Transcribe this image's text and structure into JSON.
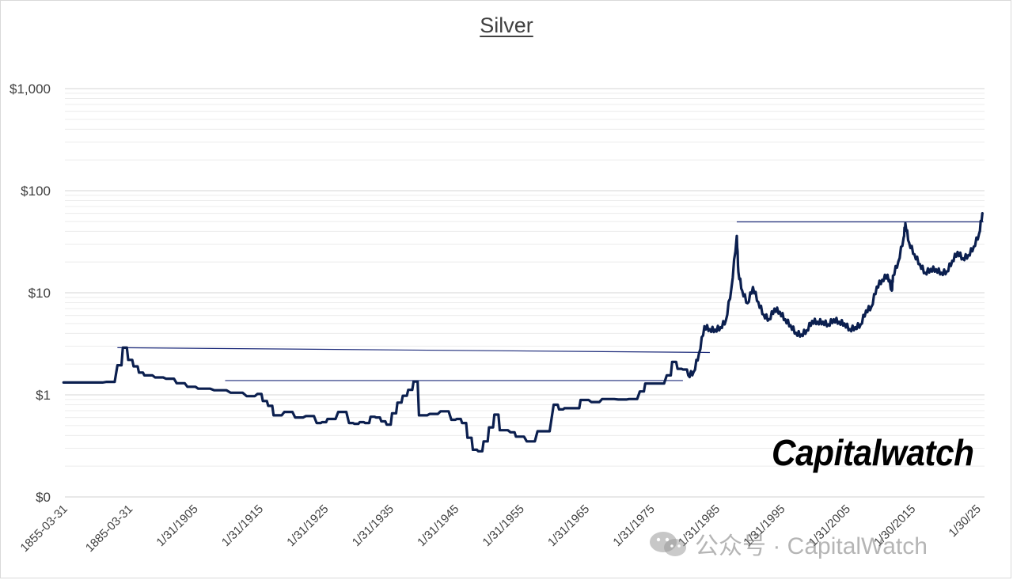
{
  "chart_data": {
    "type": "line",
    "title": "Silver",
    "xlabel": "",
    "ylabel": "",
    "y_scale": "log",
    "y_ticks": [
      "$1,000",
      "$100",
      "$10",
      "$1",
      "$0"
    ],
    "x_ticks": [
      "1855-03-31",
      "1885-03-31",
      "1/31/1905",
      "1/31/1915",
      "1/31/1925",
      "1/31/1935",
      "1/31/1945",
      "1/31/1955",
      "1/31/1965",
      "1/31/1975",
      "1/31/1985",
      "1/31/1995",
      "1/31/2005",
      "1/30/2015",
      "1/30/25"
    ],
    "grid": "minor horizontal log gridlines",
    "series": [
      {
        "color": "#0b1f4f",
        "points": [
          [
            1855,
            1.32
          ],
          [
            1860,
            1.32
          ],
          [
            1863,
            1.34
          ],
          [
            1865,
            1.95
          ],
          [
            1866,
            2.9
          ],
          [
            1867,
            2.2
          ],
          [
            1868,
            1.9
          ],
          [
            1869,
            1.65
          ],
          [
            1870,
            1.55
          ],
          [
            1872,
            1.48
          ],
          [
            1874,
            1.44
          ],
          [
            1876,
            1.3
          ],
          [
            1878,
            1.2
          ],
          [
            1880,
            1.15
          ],
          [
            1883,
            1.11
          ],
          [
            1886,
            1.05
          ],
          [
            1889,
            0.97
          ],
          [
            1891,
            1.02
          ],
          [
            1892,
            0.87
          ],
          [
            1893,
            0.78
          ],
          [
            1894,
            0.63
          ],
          [
            1896,
            0.68
          ],
          [
            1898,
            0.6
          ],
          [
            1900,
            0.62
          ],
          [
            1902,
            0.53
          ],
          [
            1903,
            0.54
          ],
          [
            1904,
            0.58
          ],
          [
            1906,
            0.68
          ],
          [
            1908,
            0.53
          ],
          [
            1909,
            0.52
          ],
          [
            1910,
            0.54
          ],
          [
            1911,
            0.53
          ],
          [
            1912,
            0.61
          ],
          [
            1913,
            0.6
          ],
          [
            1914,
            0.55
          ],
          [
            1915,
            0.51
          ],
          [
            1916,
            0.66
          ],
          [
            1917,
            0.84
          ],
          [
            1918,
            0.98
          ],
          [
            1919,
            1.12
          ],
          [
            1920,
            1.35
          ],
          [
            1921,
            0.63
          ],
          [
            1923,
            0.65
          ],
          [
            1925,
            0.69
          ],
          [
            1927,
            0.57
          ],
          [
            1928,
            0.58
          ],
          [
            1929,
            0.53
          ],
          [
            1930,
            0.38
          ],
          [
            1931,
            0.29
          ],
          [
            1932,
            0.28
          ],
          [
            1933,
            0.35
          ],
          [
            1934,
            0.48
          ],
          [
            1935,
            0.64
          ],
          [
            1936,
            0.45
          ],
          [
            1938,
            0.43
          ],
          [
            1939,
            0.39
          ],
          [
            1941,
            0.35
          ],
          [
            1943,
            0.44
          ],
          [
            1946,
            0.8
          ],
          [
            1947,
            0.72
          ],
          [
            1948,
            0.74
          ],
          [
            1950,
            0.74
          ],
          [
            1951,
            0.89
          ],
          [
            1953,
            0.85
          ],
          [
            1955,
            0.91
          ],
          [
            1958,
            0.9
          ],
          [
            1960,
            0.91
          ],
          [
            1962,
            1.08
          ],
          [
            1963,
            1.29
          ],
          [
            1965,
            1.29
          ],
          [
            1967,
            1.55
          ],
          [
            1968,
            2.1
          ],
          [
            1969,
            1.8
          ],
          [
            1970,
            1.77
          ],
          [
            1971,
            1.55
          ],
          [
            1972,
            1.68
          ],
          [
            1973,
            2.56
          ],
          [
            1974,
            4.7
          ],
          [
            1975,
            4.4
          ],
          [
            1976,
            4.35
          ],
          [
            1977,
            4.6
          ],
          [
            1978,
            5.4
          ],
          [
            1979,
            11.1
          ],
          [
            1980,
            36.0
          ],
          [
            1980.3,
            16.0
          ],
          [
            1981,
            10.5
          ],
          [
            1982,
            7.9
          ],
          [
            1983,
            11.4
          ],
          [
            1984,
            8.1
          ],
          [
            1985,
            6.1
          ],
          [
            1986,
            5.5
          ],
          [
            1987,
            7.0
          ],
          [
            1988,
            6.5
          ],
          [
            1989,
            5.5
          ],
          [
            1990,
            4.8
          ],
          [
            1991,
            4.05
          ],
          [
            1992,
            3.9
          ],
          [
            1993,
            4.3
          ],
          [
            1994,
            5.3
          ],
          [
            1995,
            5.2
          ],
          [
            1996,
            5.2
          ],
          [
            1997,
            4.9
          ],
          [
            1998,
            5.5
          ],
          [
            1999,
            5.2
          ],
          [
            2000,
            5.0
          ],
          [
            2001,
            4.4
          ],
          [
            2002,
            4.6
          ],
          [
            2003,
            4.9
          ],
          [
            2004,
            6.7
          ],
          [
            2005,
            7.3
          ],
          [
            2006,
            11.5
          ],
          [
            2007,
            13.4
          ],
          [
            2008,
            15.0
          ],
          [
            2008.8,
            10.5
          ],
          [
            2009,
            14.7
          ],
          [
            2010,
            20.2
          ],
          [
            2011,
            35.0
          ],
          [
            2011.3,
            48.0
          ],
          [
            2012,
            31.0
          ],
          [
            2013,
            23.8
          ],
          [
            2014,
            19.1
          ],
          [
            2015,
            15.7
          ],
          [
            2016,
            17.1
          ],
          [
            2017,
            17.0
          ],
          [
            2018,
            15.7
          ],
          [
            2019,
            16.2
          ],
          [
            2020,
            20.6
          ],
          [
            2021,
            25.1
          ],
          [
            2022,
            21.7
          ],
          [
            2023,
            23.4
          ],
          [
            2024,
            28.3
          ],
          [
            2025,
            38.0
          ],
          [
            2025.6,
            60.0
          ]
        ]
      }
    ],
    "reference_lines": [
      {
        "x0": 1865,
        "y0": 2.9,
        "x1": 1975,
        "y1": 2.6,
        "color": "#1c2a7a"
      },
      {
        "x0": 1885,
        "y0": 1.38,
        "x1": 1970,
        "y1": 1.38,
        "color": "#1c2a7a"
      },
      {
        "x0": 1980,
        "y0": 49.5,
        "x1": 2025.8,
        "y1": 49.5,
        "color": "#1c2a7a"
      }
    ]
  },
  "brand": {
    "name": "Capitalwatch"
  },
  "watermark": {
    "text": "公众号 · CapitalWatch"
  }
}
